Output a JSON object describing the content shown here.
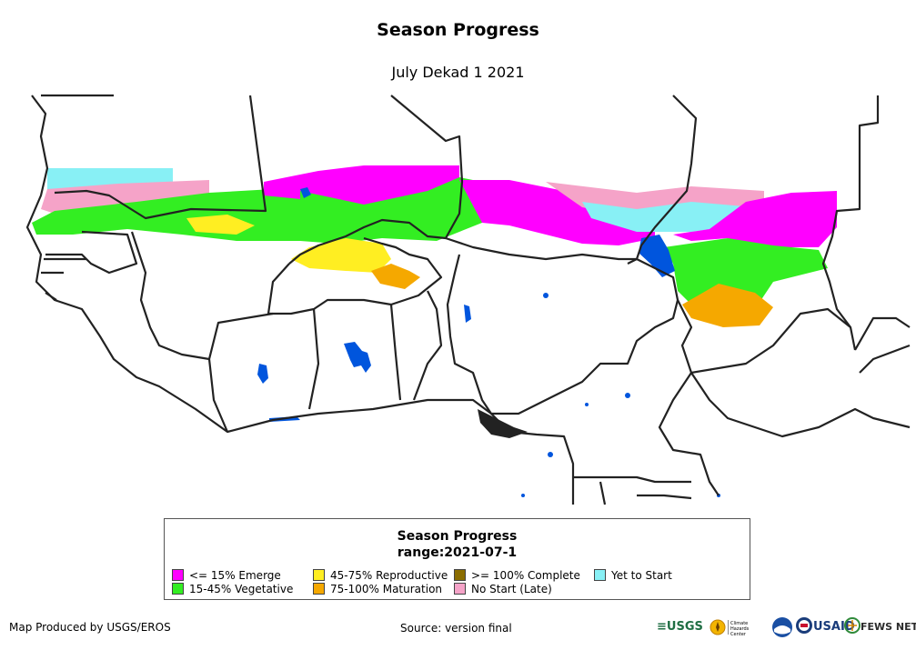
{
  "header": {
    "title": "Season Progress",
    "subtitle": "July Dekad 1 2021"
  },
  "legend": {
    "title_line1": "Season Progress",
    "title_line2": "range:2021-07-1",
    "items": [
      {
        "label": "<= 15% Emerge",
        "color": "#ff00ff"
      },
      {
        "label": "15-45% Vegetative",
        "color": "#33ee22"
      },
      {
        "label": "45-75% Reproductive",
        "color": "#ffee22"
      },
      {
        "label": "75-100% Maturation",
        "color": "#f5a800"
      },
      {
        "label": ">= 100% Complete",
        "color": "#8b6d00"
      },
      {
        "label": "No Start (Late)",
        "color": "#f5a3c8"
      },
      {
        "label": "Yet to Start",
        "color": "#88f0f5"
      }
    ]
  },
  "colors": {
    "water": "#0055dd",
    "border": "#222222"
  },
  "footer": {
    "produced_by": "Map Produced by USGS/EROS",
    "source": "Source: version final"
  },
  "logos": {
    "usgs": "USGS",
    "climate_hazards": "Climate Hazards Center",
    "noaa_icon": "noaa-icon",
    "usaid": "USAID",
    "fews": "FEWS NET"
  }
}
